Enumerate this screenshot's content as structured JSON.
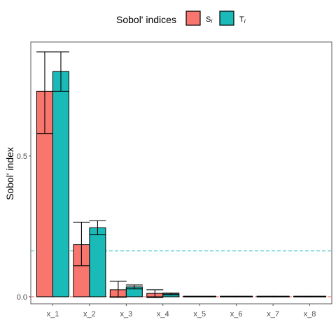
{
  "chart_data": {
    "type": "bar",
    "categories": [
      "x_1",
      "x_2",
      "x_3",
      "x_4",
      "x_5",
      "x_6",
      "x_7",
      "x_8"
    ],
    "series": [
      {
        "name": "S",
        "subscript": "i",
        "color": "#F8766D",
        "values": [
          0.73,
          0.185,
          0.025,
          0.012,
          0.001,
          0.001,
          0.001,
          0.001
        ],
        "lower": [
          0.58,
          0.11,
          -0.002,
          -0.003,
          0.0,
          0.0,
          0.0,
          0.0
        ],
        "upper": [
          0.87,
          0.265,
          0.055,
          0.025,
          0.002,
          0.002,
          0.002,
          0.002
        ]
      },
      {
        "name": "T",
        "subscript": "i",
        "color": "#1ABAB8",
        "values": [
          0.8,
          0.245,
          0.035,
          0.01,
          0.001,
          0.001,
          0.001,
          0.001
        ],
        "lower": [
          0.73,
          0.22,
          0.028,
          0.007,
          0.0,
          0.0,
          0.0,
          0.0
        ],
        "upper": [
          0.87,
          0.27,
          0.042,
          0.013,
          0.002,
          0.002,
          0.002,
          0.002
        ]
      }
    ],
    "hlines": [
      {
        "y": 0.163,
        "color": "#1ABAB8"
      },
      {
        "y": 0.0,
        "color": "#F8766D"
      }
    ],
    "xlabel": "",
    "ylabel": "Sobol' index",
    "ylim": [
      -0.025,
      0.905
    ],
    "yticks": [
      0.0,
      0.5
    ],
    "ytick_labels": [
      "0.0",
      "0.5"
    ],
    "legend": {
      "title": "Sobol' indices",
      "position": "top"
    },
    "grid": false
  }
}
